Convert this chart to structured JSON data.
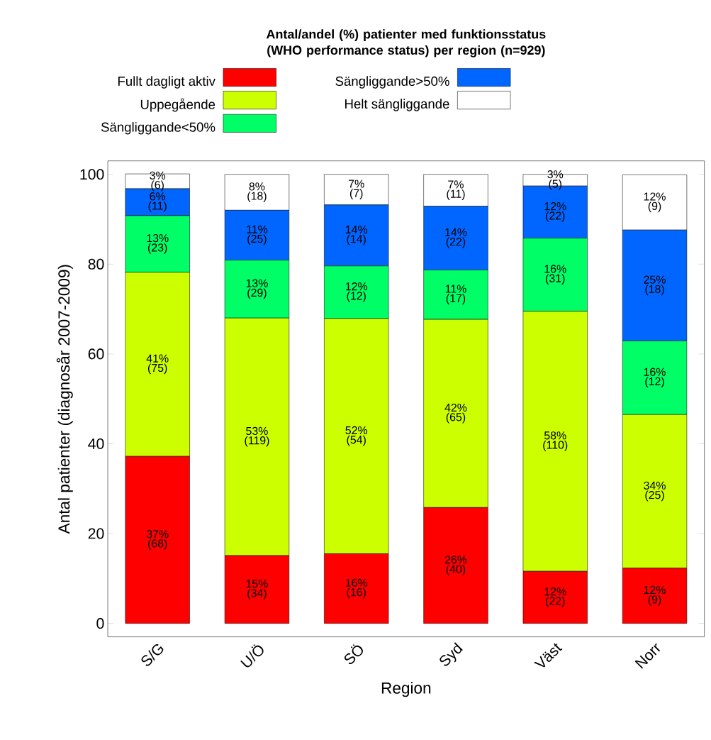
{
  "chart_data": {
    "type": "bar",
    "stacked": true,
    "title": "Antal/andel (%) patienter med funktionsstatus (WHO performance status) per region (n=929)",
    "xlabel": "Region",
    "ylabel": "Antal patienter (diagnosår 2007-2009)",
    "categories": [
      "S/G",
      "U/Ö",
      "SÖ",
      "Syd",
      "Väst",
      "Norr"
    ],
    "ylim": [
      -3,
      103
    ],
    "yticks": [
      0,
      20,
      40,
      60,
      80,
      100
    ],
    "legend": "top",
    "grid": false,
    "series": [
      {
        "name": "Fullt dagligt aktiv",
        "color": "#ff0000",
        "values": [
          37.2,
          15.1,
          15.5,
          25.8,
          11.6,
          12.3
        ],
        "value_labels": [
          "37% (68)",
          "15% (34)",
          "16% (16)",
          "26% (40)",
          "12% (22)",
          "12% (9)"
        ]
      },
      {
        "name": "Uppegående",
        "color": "#ccff00",
        "values": [
          41.0,
          52.9,
          52.4,
          41.9,
          57.9,
          34.2
        ],
        "value_labels": [
          "41% (75)",
          "53% (119)",
          "52% (54)",
          "42% (65)",
          "58% (110)",
          "34% (25)"
        ]
      },
      {
        "name": "Sängliggande<50%",
        "color": "#00ff66",
        "values": [
          12.6,
          12.9,
          11.7,
          11.0,
          16.3,
          16.4
        ],
        "value_labels": [
          "13% (23)",
          "13% (29)",
          "12% (12)",
          "11% (17)",
          "16% (31)",
          "16% (12)"
        ]
      },
      {
        "name": "Sängliggande>50%",
        "color": "#0066ff",
        "values": [
          6.0,
          11.1,
          13.6,
          14.2,
          11.6,
          24.7
        ],
        "value_labels": [
          "6% (11)",
          "11% (25)",
          "14% (14)",
          "14% (22)",
          "12% (22)",
          "25% (18)"
        ]
      },
      {
        "name": "Helt sängliggande",
        "color": "#ffffff",
        "values": [
          3.3,
          8.0,
          6.8,
          7.1,
          2.6,
          12.3
        ],
        "value_labels": [
          "3% (6)",
          "8% (18)",
          "7% (7)",
          "7% (11)",
          "3% (5)",
          "12% (9)"
        ]
      }
    ]
  }
}
